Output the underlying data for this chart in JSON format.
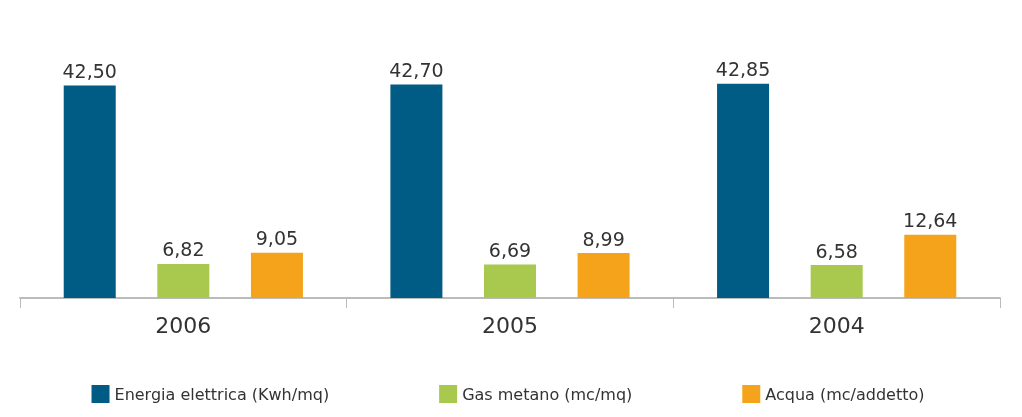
{
  "chart_data": {
    "type": "bar",
    "categories": [
      "2006",
      "2005",
      "2004"
    ],
    "series": [
      {
        "name": "Energia elettrica (Kwh/mq)",
        "color": "#005b85",
        "values": [
          42.5,
          42.7,
          42.85
        ],
        "value_labels": [
          "42,50",
          "42,70",
          "42,85"
        ]
      },
      {
        "name": "Gas metano (mc/mq)",
        "color": "#a8c84e",
        "values": [
          6.82,
          6.69,
          6.58
        ],
        "value_labels": [
          "6,82",
          "6,69",
          "6,58"
        ]
      },
      {
        "name": "Acqua (mc/addetto)",
        "color": "#f5a31a",
        "values": [
          9.05,
          8.99,
          12.64
        ],
        "value_labels": [
          "9,05",
          "8,99",
          "12,64"
        ]
      }
    ],
    "legend": "bottom"
  }
}
